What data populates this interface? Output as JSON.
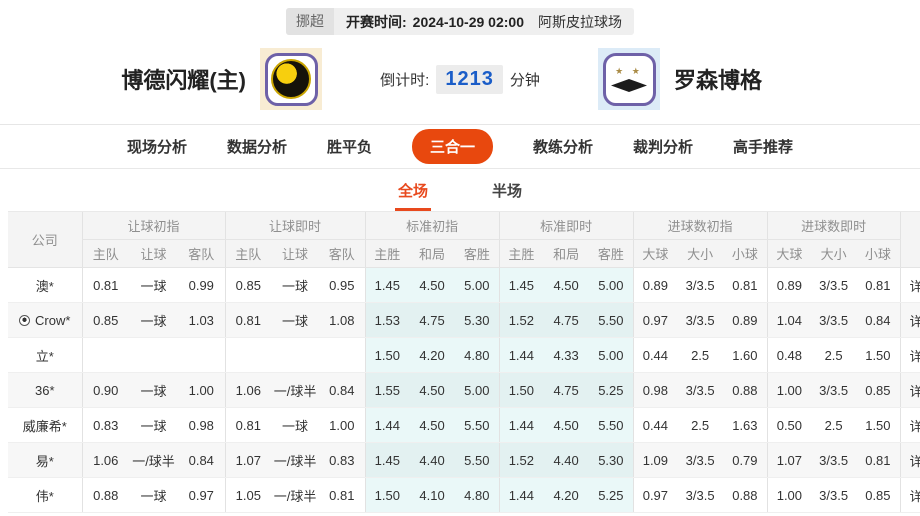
{
  "match_bar": {
    "league": "挪超",
    "kickoff_label": "开赛时间:",
    "kickoff_time": "2024-10-29 02:00",
    "venue": "阿斯皮拉球场"
  },
  "teams": {
    "home": {
      "name": "博德闪耀(主)"
    },
    "away": {
      "name": "罗森博格"
    }
  },
  "countdown": {
    "label": "倒计时:",
    "value": "1213",
    "unit": "分钟"
  },
  "nav_tabs": [
    {
      "label": "现场分析",
      "active": false
    },
    {
      "label": "数据分析",
      "active": false
    },
    {
      "label": "胜平负",
      "active": false
    },
    {
      "label": "三合一",
      "active": true
    },
    {
      "label": "教练分析",
      "active": false
    },
    {
      "label": "裁判分析",
      "active": false
    },
    {
      "label": "高手推荐",
      "active": false
    }
  ],
  "period_tabs": [
    {
      "label": "全场",
      "active": true
    },
    {
      "label": "半场",
      "active": false
    }
  ],
  "odds_table": {
    "company_header": "公司",
    "detail_label": "详情",
    "groups": [
      {
        "title": "让球初指",
        "cols": [
          "主队",
          "让球",
          "客队"
        ],
        "live": false,
        "tint": false
      },
      {
        "title": "让球即时",
        "cols": [
          "主队",
          "让球",
          "客队"
        ],
        "live": true,
        "tint": false
      },
      {
        "title": "标准初指",
        "cols": [
          "主胜",
          "和局",
          "客胜"
        ],
        "live": false,
        "tint": true
      },
      {
        "title": "标准即时",
        "cols": [
          "主胜",
          "和局",
          "客胜"
        ],
        "live": true,
        "tint": true
      },
      {
        "title": "进球数初指",
        "cols": [
          "大球",
          "大小",
          "小球"
        ],
        "live": false,
        "tint": false
      },
      {
        "title": "进球数即时",
        "cols": [
          "大球",
          "大小",
          "小球"
        ],
        "live": true,
        "tint": false
      }
    ],
    "rows": [
      {
        "company": "澳*",
        "ball_icon": false,
        "odds": [
          [
            "0.81",
            "一球",
            "0.99"
          ],
          [
            "0.85",
            "一球",
            "0.95"
          ],
          [
            "1.45",
            "4.50",
            "5.00"
          ],
          [
            "1.45",
            "4.50",
            "5.00"
          ],
          [
            "0.89",
            "3/3.5",
            "0.81"
          ],
          [
            "0.89",
            "3/3.5",
            "0.81"
          ]
        ]
      },
      {
        "company": "Crow*",
        "ball_icon": true,
        "odds": [
          [
            "0.85",
            "一球",
            "1.03"
          ],
          [
            "0.81",
            "一球",
            "1.08"
          ],
          [
            "1.53",
            "4.75",
            "5.30"
          ],
          [
            "1.52",
            "4.75",
            "5.50"
          ],
          [
            "0.97",
            "3/3.5",
            "0.89"
          ],
          [
            "1.04",
            "3/3.5",
            "0.84"
          ]
        ]
      },
      {
        "company": "立*",
        "ball_icon": false,
        "odds": [
          [
            "",
            "",
            ""
          ],
          [
            "",
            "",
            ""
          ],
          [
            "1.50",
            "4.20",
            "4.80"
          ],
          [
            "1.44",
            "4.33",
            "5.00"
          ],
          [
            "0.44",
            "2.5",
            "1.60"
          ],
          [
            "0.48",
            "2.5",
            "1.50"
          ]
        ]
      },
      {
        "company": "36*",
        "ball_icon": false,
        "odds": [
          [
            "0.90",
            "一球",
            "1.00"
          ],
          [
            "1.06",
            "一/球半",
            "0.84"
          ],
          [
            "1.55",
            "4.50",
            "5.00"
          ],
          [
            "1.50",
            "4.75",
            "5.25"
          ],
          [
            "0.98",
            "3/3.5",
            "0.88"
          ],
          [
            "1.00",
            "3/3.5",
            "0.85"
          ]
        ]
      },
      {
        "company": "威廉希*",
        "ball_icon": false,
        "odds": [
          [
            "0.83",
            "一球",
            "0.98"
          ],
          [
            "0.81",
            "一球",
            "1.00"
          ],
          [
            "1.44",
            "4.50",
            "5.50"
          ],
          [
            "1.44",
            "4.50",
            "5.50"
          ],
          [
            "0.44",
            "2.5",
            "1.63"
          ],
          [
            "0.50",
            "2.5",
            "1.50"
          ]
        ]
      },
      {
        "company": "易*",
        "ball_icon": false,
        "odds": [
          [
            "1.06",
            "一/球半",
            "0.84"
          ],
          [
            "1.07",
            "一/球半",
            "0.83"
          ],
          [
            "1.45",
            "4.40",
            "5.50"
          ],
          [
            "1.52",
            "4.40",
            "5.30"
          ],
          [
            "1.09",
            "3/3.5",
            "0.79"
          ],
          [
            "1.07",
            "3/3.5",
            "0.81"
          ]
        ]
      },
      {
        "company": "伟*",
        "ball_icon": false,
        "odds": [
          [
            "0.88",
            "一球",
            "0.97"
          ],
          [
            "1.05",
            "一/球半",
            "0.81"
          ],
          [
            "1.50",
            "4.10",
            "4.80"
          ],
          [
            "1.44",
            "4.20",
            "5.25"
          ],
          [
            "0.97",
            "3/3.5",
            "0.88"
          ],
          [
            "1.00",
            "3/3.5",
            "0.85"
          ]
        ]
      }
    ]
  },
  "colors": {
    "accent_orange": "#e8480e",
    "tab_red": "#e8491d",
    "live_blue": "#2f62c1",
    "countdown_blue": "#1a5dc8",
    "tint_cyan": "#e9f7f7"
  }
}
